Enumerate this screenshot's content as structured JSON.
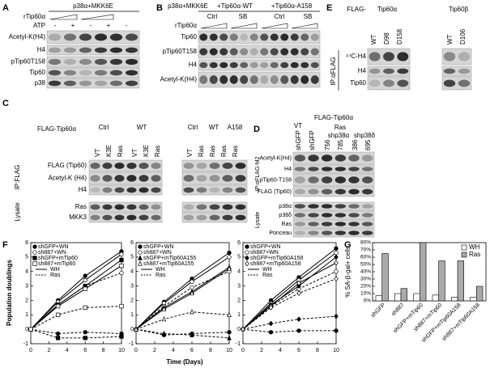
{
  "panel_a": {
    "letter": "A",
    "header": "p38α+MKK6E",
    "rtip": "rTip60α",
    "atp": "ATP",
    "atp_marks": [
      "-",
      "+",
      "-",
      "+",
      "-"
    ],
    "blots": [
      "Acetyl-K(H4)",
      "H4",
      "pTip60T158",
      "Tip60",
      "p38"
    ]
  },
  "panel_b": {
    "letter": "B",
    "headers": [
      "p38α+MKK6E",
      "+Tip60α-WT",
      "+Tip60α-A158"
    ],
    "groups": [
      "Ctrl",
      "SB",
      "Ctrl",
      "SB"
    ],
    "rtip": "rTip60α",
    "blots": [
      "Tip60",
      "pTip60T158",
      "H4",
      "Acetyl-K(H4)"
    ]
  },
  "panel_c": {
    "letter": "C",
    "construct": "FLAG-Tip60α",
    "groups": [
      "Ctrl",
      "WT",
      "Ctrl",
      "WT",
      "A158"
    ],
    "lanes": [
      "VT",
      "K3E",
      "Ras",
      "VT",
      "K3E",
      "Ras",
      "VT",
      "Ras",
      "Ras",
      "Ras",
      "Ras"
    ],
    "ip": "IP:FLAG",
    "ip_blots": [
      "FLAG (Tip60)",
      "Acetyl-K (H4)",
      "H4"
    ],
    "lysate": "Lysate",
    "lysate_blots": [
      "Ras",
      "MKK3"
    ]
  },
  "panel_d": {
    "letter": "D",
    "construct": "FLAG-Tip60α",
    "vt": "VT",
    "ras": "Ras",
    "lanes": [
      "shGFP",
      "shGFP"
    ],
    "groups": [
      "shp38α",
      "shp38δ"
    ],
    "clones": [
      "756",
      "785",
      "386",
      "695"
    ],
    "ip": "IP:αFLAG-M2",
    "ip_blots": [
      "Acetyl-K(H4)",
      "H4",
      "pTip60-T158",
      "FLAG (Tip60)"
    ],
    "lysate": "Lysate",
    "lysate_blots": [
      "p38α",
      "p38δ",
      "Ras",
      "Ponceau"
    ]
  },
  "panel_e": {
    "letter": "E",
    "prefix": "FLAG-",
    "isoforms": [
      "Tip60α",
      "Tip60β"
    ],
    "lanes": [
      "WT",
      "D98",
      "D158",
      "WT",
      "D106"
    ],
    "ip": "IP:αFLAG",
    "blots": [
      "¹⁴C-H4",
      "H4",
      "Tip60"
    ]
  },
  "panel_f": {
    "letter": "F",
    "y_label": "Population doublings",
    "x_label": "Time (Days)"
  },
  "panel_g": {
    "letter": "G"
  },
  "chart_data": [
    {
      "type": "line",
      "x": [
        0,
        3,
        6,
        10
      ],
      "xlim": [
        0,
        10
      ],
      "xticks": [
        0,
        2,
        4,
        6,
        8,
        10
      ],
      "ylim": [
        -1,
        6
      ],
      "yticks": [
        -1,
        0,
        1,
        2,
        3,
        4,
        5,
        6
      ],
      "line_styles": [
        "WH",
        "Ras"
      ],
      "dashed": [
        false,
        true
      ],
      "series": [
        {
          "name": "shGFP+WN",
          "marker": "circle",
          "filled": true,
          "values": [
            [
              0,
              2.0,
              3.7,
              5.4
            ],
            [
              0,
              -0.3,
              -0.2,
              -0.3
            ]
          ]
        },
        {
          "name": "sh887+WN",
          "marker": "circle",
          "filled": false,
          "values": [
            [
              0,
              1.9,
              3.4,
              5.2
            ],
            [
              0,
              1.7,
              3.0,
              3.9
            ]
          ]
        },
        {
          "name": "shGFP+mTip60",
          "marker": "square",
          "filled": true,
          "values": [
            [
              0,
              1.7,
              3.0,
              4.8
            ],
            [
              0,
              -0.6,
              -0.6,
              -0.5
            ]
          ]
        },
        {
          "name": "sh887+mTip60",
          "marker": "square",
          "filled": false,
          "values": [
            [
              0,
              1.6,
              2.8,
              4.4
            ],
            [
              0,
              1.0,
              1.5,
              1.6
            ]
          ]
        }
      ]
    },
    {
      "type": "line",
      "x": [
        0,
        3,
        6,
        10
      ],
      "xlim": [
        0,
        10
      ],
      "xticks": [
        0,
        2,
        4,
        6,
        8,
        10
      ],
      "ylim": [
        -1,
        6
      ],
      "yticks": [
        -1,
        0,
        1,
        2,
        3,
        4,
        5,
        6
      ],
      "line_styles": [
        "WH",
        "Ras"
      ],
      "dashed": [
        false,
        true
      ],
      "series": [
        {
          "name": "shGFP+WN",
          "marker": "circle",
          "filled": true,
          "values": [
            [
              0,
              1.9,
              3.5,
              5.3
            ],
            [
              0,
              -0.4,
              -0.3,
              -0.2
            ]
          ]
        },
        {
          "name": "sh887+WN",
          "marker": "circle",
          "filled": false,
          "values": [
            [
              0,
              1.8,
              3.3,
              5.0
            ],
            [
              0,
              1.6,
              2.9,
              4.0
            ]
          ]
        },
        {
          "name": "shGFP+mTip60A155",
          "marker": "triangle",
          "filled": true,
          "values": [
            [
              0,
              1.5,
              2.6,
              4.3
            ],
            [
              0,
              -0.3,
              -0.4,
              -0.6
            ]
          ]
        },
        {
          "name": "sh887+mTip60A155",
          "marker": "triangle",
          "filled": false,
          "values": [
            [
              0,
              1.4,
              2.5,
              4.2
            ],
            [
              0,
              0.7,
              1.2,
              1.0
            ]
          ]
        }
      ]
    },
    {
      "type": "line",
      "x": [
        0,
        3,
        6,
        10
      ],
      "xlim": [
        0,
        10
      ],
      "xticks": [
        0,
        2,
        4,
        6,
        8,
        10
      ],
      "ylim": [
        -1,
        6
      ],
      "yticks": [
        -1,
        0,
        1,
        2,
        3,
        4,
        5,
        6
      ],
      "line_styles": [
        "WH",
        "Ras"
      ],
      "dashed": [
        false,
        true
      ],
      "series": [
        {
          "name": "shGFP+WN",
          "marker": "circle",
          "filled": true,
          "values": [
            [
              0,
              2.0,
              3.6,
              5.6
            ],
            [
              0,
              -0.2,
              -0.1,
              -0.1
            ]
          ]
        },
        {
          "name": "sh887+WN",
          "marker": "circle",
          "filled": false,
          "values": [
            [
              0,
              1.8,
              3.4,
              5.3
            ],
            [
              0,
              1.6,
              2.8,
              4.0
            ]
          ]
        },
        {
          "name": "shGFP+mTip60A158",
          "marker": "diamond",
          "filled": true,
          "values": [
            [
              0,
              1.7,
              3.0,
              5.0
            ],
            [
              0,
              0.4,
              0.7,
              0.9
            ]
          ]
        },
        {
          "name": "sh887+mTip60A158",
          "marker": "diamond",
          "filled": false,
          "values": [
            [
              0,
              1.6,
              3.2,
              4.6
            ],
            [
              0,
              1.5,
              2.5,
              3.5
            ]
          ]
        }
      ]
    },
    {
      "type": "bar",
      "y_label": "% SA-β-gal+ cells",
      "categories": [
        "shGFP",
        "sh887",
        "shGFP+mTip60",
        "sh887+mTip60",
        "shGFP+mTip60A158",
        "sh887+mTip60A158"
      ],
      "ylim": [
        0,
        80
      ],
      "yticks": [
        {
          "value": 0,
          "label": "0%"
        },
        {
          "value": 10,
          "label": "10%"
        },
        {
          "value": 20,
          "label": "20%"
        },
        {
          "value": 30,
          "label": "30%"
        },
        {
          "value": 40,
          "label": "40%"
        },
        {
          "value": 50,
          "label": "50%"
        },
        {
          "value": 60,
          "label": "60%"
        },
        {
          "value": 70,
          "label": "70%"
        },
        {
          "value": 80,
          "label": "80%"
        }
      ],
      "legend": "upper right",
      "series": [
        {
          "name": "WH",
          "color": "#ffffff",
          "values": [
            7,
            10,
            10,
            8,
            5,
            5
          ]
        },
        {
          "name": "Ras",
          "color": "#aaaaaa",
          "values": [
            65,
            17,
            80,
            55,
            55,
            20
          ]
        }
      ]
    }
  ]
}
